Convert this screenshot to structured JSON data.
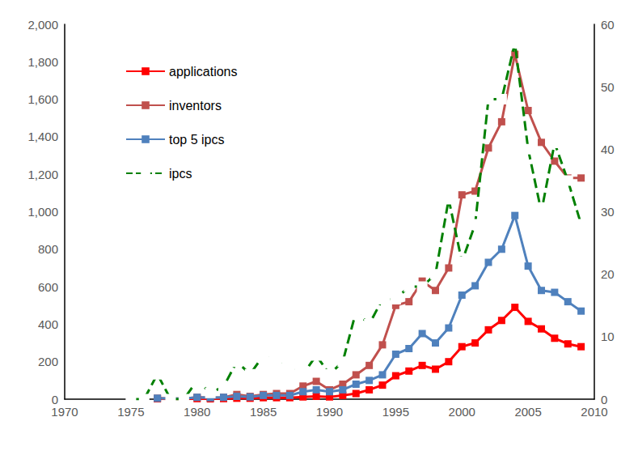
{
  "chart_data": {
    "type": "line",
    "x": [
      1975,
      1976,
      1977,
      1978,
      1979,
      1980,
      1981,
      1982,
      1983,
      1984,
      1985,
      1986,
      1987,
      1988,
      1989,
      1990,
      1991,
      1992,
      1993,
      1994,
      1995,
      1996,
      1997,
      1998,
      1999,
      2000,
      2001,
      2002,
      2003,
      2004,
      2005,
      2006,
      2007,
      2008,
      2009
    ],
    "xlim": [
      1970,
      2010
    ],
    "xticks": [
      1970,
      1975,
      1980,
      1985,
      1990,
      1995,
      2000,
      2005,
      2010
    ],
    "ylim": [
      0,
      2000
    ],
    "yticks": [
      0,
      200,
      400,
      600,
      800,
      {
        "value": 1000,
        "label": "1,000"
      },
      {
        "value": 1200,
        "label": "1,200"
      },
      {
        "value": 1400,
        "label": "1,400"
      },
      {
        "value": 1600,
        "label": "1,600"
      },
      {
        "value": 1800,
        "label": "1,800"
      },
      {
        "value": 2000,
        "label": "2,000"
      }
    ],
    "y2lim": [
      0,
      60
    ],
    "y2ticks": [
      0,
      10,
      20,
      30,
      40,
      50,
      60
    ],
    "grid": false,
    "legend": "upper left",
    "series": [
      {
        "name": "applications",
        "color": "#ff0000",
        "marker": "square",
        "line_style": "solid",
        "values": [
          null,
          null,
          2,
          1,
          1,
          3,
          2,
          3,
          5,
          5,
          8,
          8,
          8,
          12,
          15,
          12,
          20,
          30,
          50,
          75,
          125,
          150,
          180,
          160,
          200,
          280,
          300,
          370,
          420,
          490,
          415,
          375,
          325,
          295,
          280
        ]
      },
      {
        "name": "inventors",
        "color": "#c0504d",
        "marker": "square",
        "line_style": "solid",
        "values": [
          null,
          null,
          5,
          3,
          3,
          10,
          8,
          10,
          25,
          15,
          25,
          30,
          30,
          70,
          95,
          50,
          80,
          130,
          180,
          290,
          500,
          520,
          630,
          580,
          700,
          1090,
          1110,
          1340,
          1480,
          1840,
          1540,
          1370,
          1270,
          1180,
          1180
        ]
      },
      {
        "name": "top 5 ipcs",
        "color": "#4f81bd",
        "marker": "square",
        "line_style": "solid",
        "values": [
          null,
          null,
          5,
          3,
          3,
          10,
          8,
          10,
          15,
          12,
          20,
          20,
          20,
          40,
          50,
          40,
          50,
          80,
          100,
          130,
          240,
          270,
          350,
          300,
          380,
          555,
          605,
          730,
          800,
          980,
          710,
          580,
          570,
          520,
          470
        ]
      },
      {
        "name": "ipcs",
        "color": "#008000",
        "marker": "open_square",
        "line_style": "dashed",
        "axis": "y2",
        "values": [
          0,
          0,
          4,
          0,
          0,
          3,
          1,
          2,
          6,
          4,
          7,
          6,
          5,
          4,
          7,
          4,
          6,
          14,
          12,
          16,
          16,
          18,
          18,
          20,
          32,
          22,
          28,
          48,
          48,
          57,
          40,
          30,
          41,
          35,
          28
        ]
      }
    ]
  }
}
